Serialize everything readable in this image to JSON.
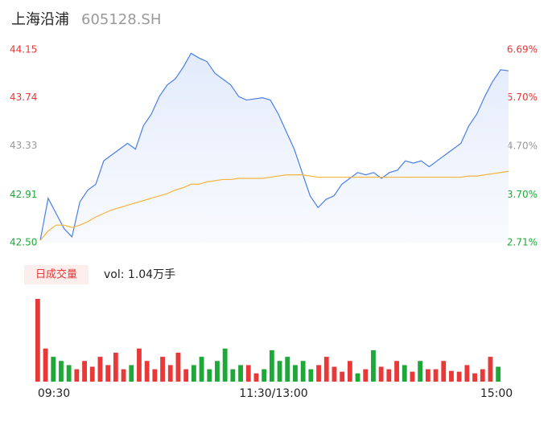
{
  "chart_data": {
    "type": "intraday",
    "title": "上海沿浦",
    "subtitle": "605128.SH",
    "ylim": [
      42.5,
      44.15
    ],
    "yticks": [
      {
        "value": 42.5,
        "label": "42.50"
      },
      42.91,
      43.33,
      43.74,
      44.15
    ],
    "y2lim": [
      2.71,
      6.69
    ],
    "y2ticks": [
      {
        "value": 2.71,
        "label": "2.71%"
      },
      {
        "value": 3.7,
        "label": "3.70%"
      },
      {
        "value": 4.7,
        "label": "4.70%"
      },
      {
        "value": 5.7,
        "label": "5.70%"
      },
      {
        "value": 6.69,
        "label": "6.69%"
      }
    ],
    "x_labels": [
      "09:30",
      "11:30/13:00",
      "15:00"
    ],
    "up_color": "#e83838",
    "down_color": "#1ea838",
    "flat_color": "#999999",
    "series": [
      {
        "name": "price",
        "color": "#4a7fe8",
        "values": [
          42.52,
          42.88,
          42.75,
          42.62,
          42.55,
          42.85,
          42.95,
          43.0,
          43.2,
          43.25,
          43.3,
          43.35,
          43.3,
          43.5,
          43.6,
          43.75,
          43.85,
          43.9,
          44.0,
          44.12,
          44.08,
          44.05,
          43.95,
          43.9,
          43.85,
          43.75,
          43.72,
          43.73,
          43.74,
          43.72,
          43.6,
          43.45,
          43.3,
          43.1,
          42.9,
          42.8,
          42.87,
          42.9,
          43.0,
          43.05,
          43.1,
          43.08,
          43.1,
          43.05,
          43.1,
          43.12,
          43.2,
          43.18,
          43.2,
          43.15,
          43.2,
          43.25,
          43.3,
          43.35,
          43.5,
          43.6,
          43.75,
          43.88,
          43.98,
          43.97
        ]
      },
      {
        "name": "average",
        "color": "#f5b43c",
        "values": [
          42.52,
          42.6,
          42.65,
          42.65,
          42.63,
          42.65,
          42.68,
          42.72,
          42.75,
          42.78,
          42.8,
          42.82,
          42.84,
          42.86,
          42.88,
          42.9,
          42.92,
          42.95,
          42.97,
          43.0,
          43.0,
          43.02,
          43.03,
          43.04,
          43.04,
          43.05,
          43.05,
          43.05,
          43.05,
          43.06,
          43.07,
          43.08,
          43.08,
          43.08,
          43.07,
          43.06,
          43.06,
          43.06,
          43.06,
          43.06,
          43.06,
          43.06,
          43.06,
          43.06,
          43.06,
          43.06,
          43.06,
          43.06,
          43.06,
          43.06,
          43.06,
          43.06,
          43.06,
          43.06,
          43.07,
          43.07,
          43.08,
          43.09,
          43.1,
          43.11
        ]
      }
    ],
    "volume_button": "日成交量",
    "volume_label": "vol: 1.04万手",
    "volume": [
      1000,
      400,
      300,
      250,
      200,
      150,
      250,
      180,
      300,
      200,
      350,
      150,
      200,
      400,
      250,
      150,
      300,
      200,
      350,
      150,
      200,
      300,
      150,
      250,
      400,
      150,
      200,
      200,
      100,
      150,
      380,
      250,
      300,
      200,
      250,
      150,
      200,
      300,
      180,
      120,
      250,
      100,
      150,
      380,
      180,
      150,
      250,
      200,
      120,
      250,
      150,
      150,
      250,
      130,
      120,
      200,
      100,
      150,
      300,
      180
    ]
  }
}
